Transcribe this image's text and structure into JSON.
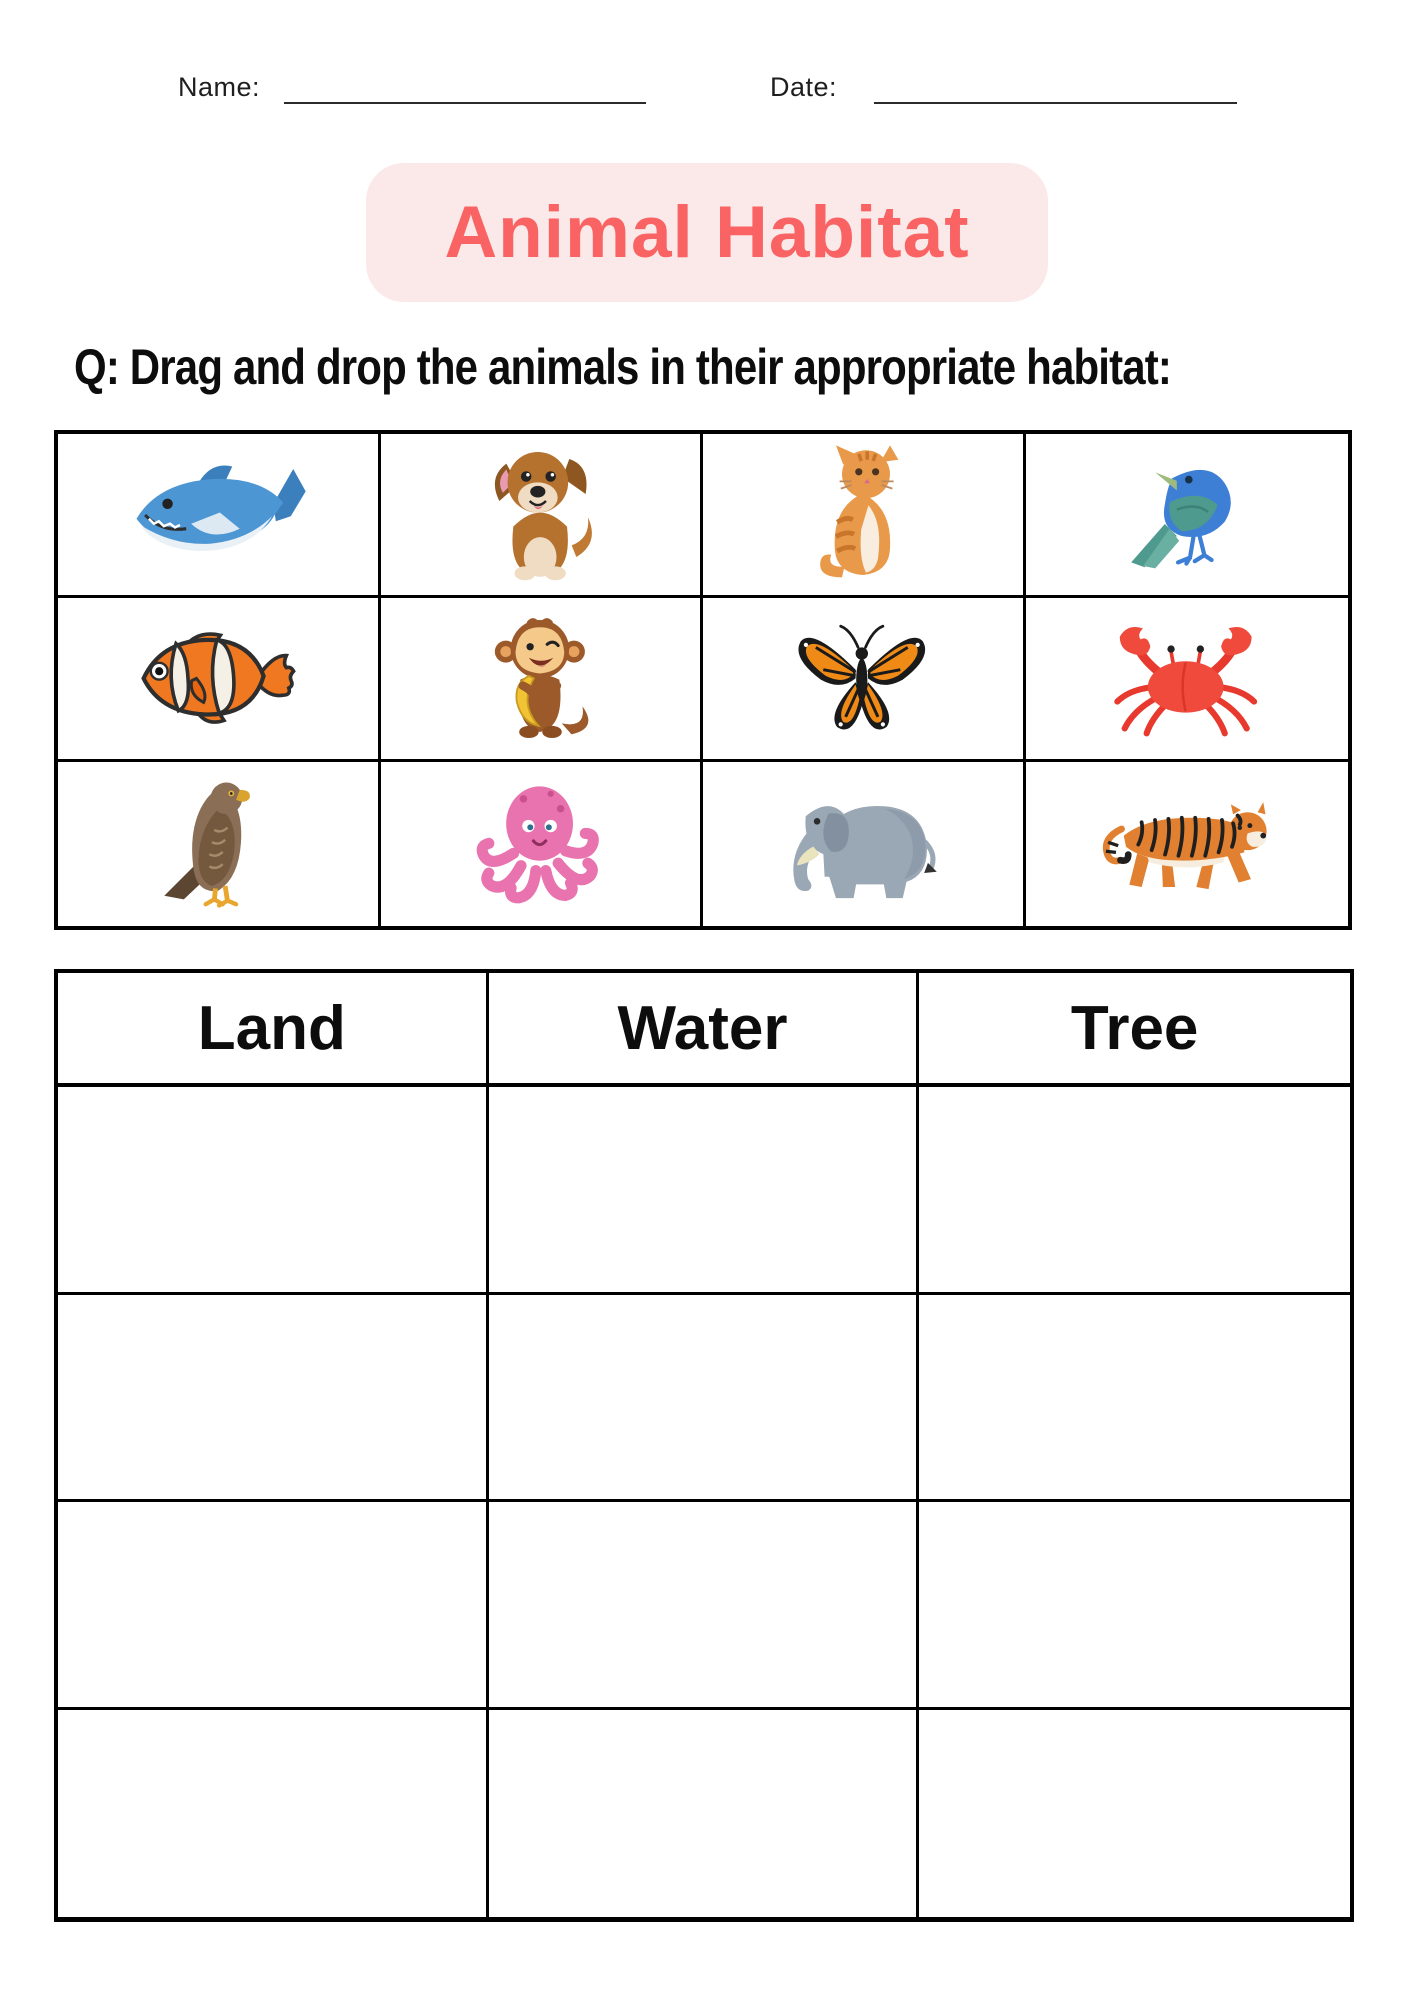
{
  "header": {
    "name_label": "Name:",
    "name_value": "",
    "date_label": "Date:",
    "date_value": "",
    "title": "Animal Habitat"
  },
  "question": "Q: Drag and drop the animals in their appropriate habitat:",
  "colors": {
    "title_text": "#F96363",
    "title_badge_bg": "#FBE9E9",
    "text": "#0d0d0d",
    "grid_border": "#000000",
    "page_bg": "#FFFFFF"
  },
  "animal_grid": {
    "rows": 3,
    "columns": 4,
    "animals": [
      {
        "name": "shark",
        "icon": "shark-image",
        "color": "#4D96D4"
      },
      {
        "name": "dog",
        "icon": "dog-image",
        "color": "#B5722F"
      },
      {
        "name": "cat",
        "icon": "cat-image",
        "color": "#E89A4A"
      },
      {
        "name": "bird",
        "icon": "bird-image",
        "color": "#3E7FD6"
      },
      {
        "name": "clownfish",
        "icon": "clownfish-image",
        "color": "#F07820"
      },
      {
        "name": "monkey",
        "icon": "monkey-image",
        "color": "#9C5A2A"
      },
      {
        "name": "butterfly",
        "icon": "butterfly-image",
        "color": "#EF8A17"
      },
      {
        "name": "crab",
        "icon": "crab-image",
        "color": "#EF4A3C"
      },
      {
        "name": "eagle",
        "icon": "eagle-image",
        "color": "#8A6E55"
      },
      {
        "name": "octopus",
        "icon": "octopus-image",
        "color": "#E873AE"
      },
      {
        "name": "elephant",
        "icon": "elephant-image",
        "color": "#9AA7B4"
      },
      {
        "name": "tiger",
        "icon": "tiger-image",
        "color": "#E08030"
      }
    ]
  },
  "habitat_table": {
    "columns": [
      "Land",
      "Water",
      "Tree"
    ],
    "empty_rows": 4
  }
}
